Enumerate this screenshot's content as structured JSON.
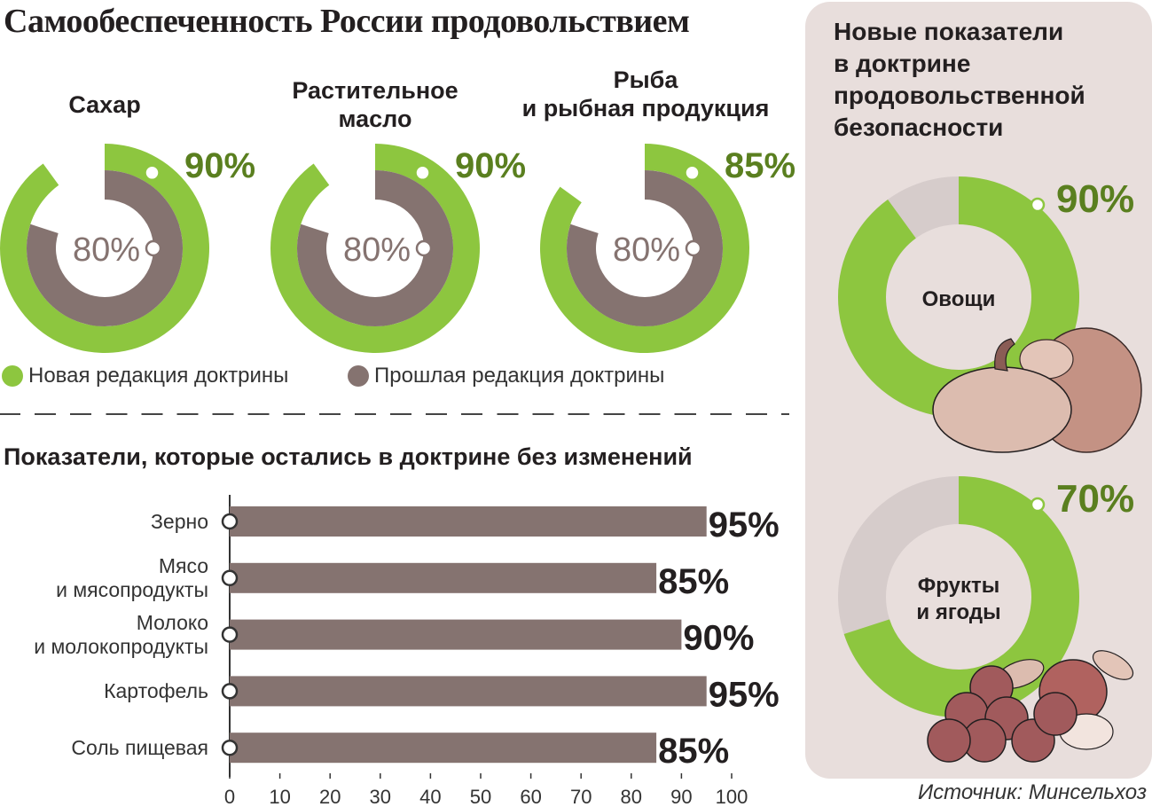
{
  "title": "Самообеспеченность России продовольствием",
  "colors": {
    "new": "#8dc63f",
    "old": "#857370",
    "remainder": "#d6cccb",
    "value_text": "#5a7f1f",
    "panel": "#e8dedc"
  },
  "chart_data": [
    {
      "type": "donut",
      "title": "",
      "series": [
        {
          "name": "Новая редакция доктрины"
        },
        {
          "name": "Прошлая редакция доктрины"
        }
      ],
      "items": [
        {
          "label": "Сахар",
          "new": 90,
          "old": 80,
          "new_label": "90%",
          "old_label": "80%"
        },
        {
          "label": "Растительное масло",
          "new": 90,
          "old": 80,
          "new_label": "90%",
          "old_label": "80%"
        },
        {
          "label": "Рыба и рыбная продукция",
          "new": 85,
          "old": 80,
          "new_label": "85%",
          "old_label": "80%"
        }
      ],
      "legend": {
        "placement": "bottom",
        "new": "Новая редакция доктрины",
        "old": "Прошлая редакция доктрины"
      }
    },
    {
      "type": "bar",
      "orientation": "horizontal",
      "title": "Показатели, которые остались в доктрине без изменений",
      "categories": [
        "Зерно",
        "Мясо и мясопродукты",
        "Молоко и молокопродукты",
        "Картофель",
        "Соль пищевая"
      ],
      "category_lines": [
        [
          "Зерно"
        ],
        [
          "Мясо",
          "и мясопродукты"
        ],
        [
          "Молоко",
          "и молокопродукты"
        ],
        [
          "Картофель"
        ],
        [
          "Соль пищевая"
        ]
      ],
      "values": [
        95,
        85,
        90,
        95,
        85
      ],
      "value_labels": [
        "95%",
        "85%",
        "90%",
        "95%",
        "85%"
      ],
      "xlim": [
        0,
        100
      ],
      "xticks": [
        "0",
        "10",
        "20",
        "30",
        "40",
        "50",
        "60",
        "70",
        "80",
        "90",
        "100"
      ],
      "grid": false
    },
    {
      "type": "donut",
      "title": "Новые показатели в доктрине продовольственной безопасности",
      "title_lines": [
        "Новые показатели",
        "в доктрине",
        "продовольственной",
        "безопасности"
      ],
      "items": [
        {
          "label_lines": [
            "Овощи"
          ],
          "value": 90,
          "value_label": "90%",
          "icon": "pumpkin-lettuce-illustration"
        },
        {
          "label_lines": [
            "Фрукты",
            "и ягоды"
          ],
          "value": 70,
          "value_label": "70%",
          "icon": "apple-berries-illustration"
        }
      ]
    }
  ],
  "source": "Источник: Минсельхоз"
}
